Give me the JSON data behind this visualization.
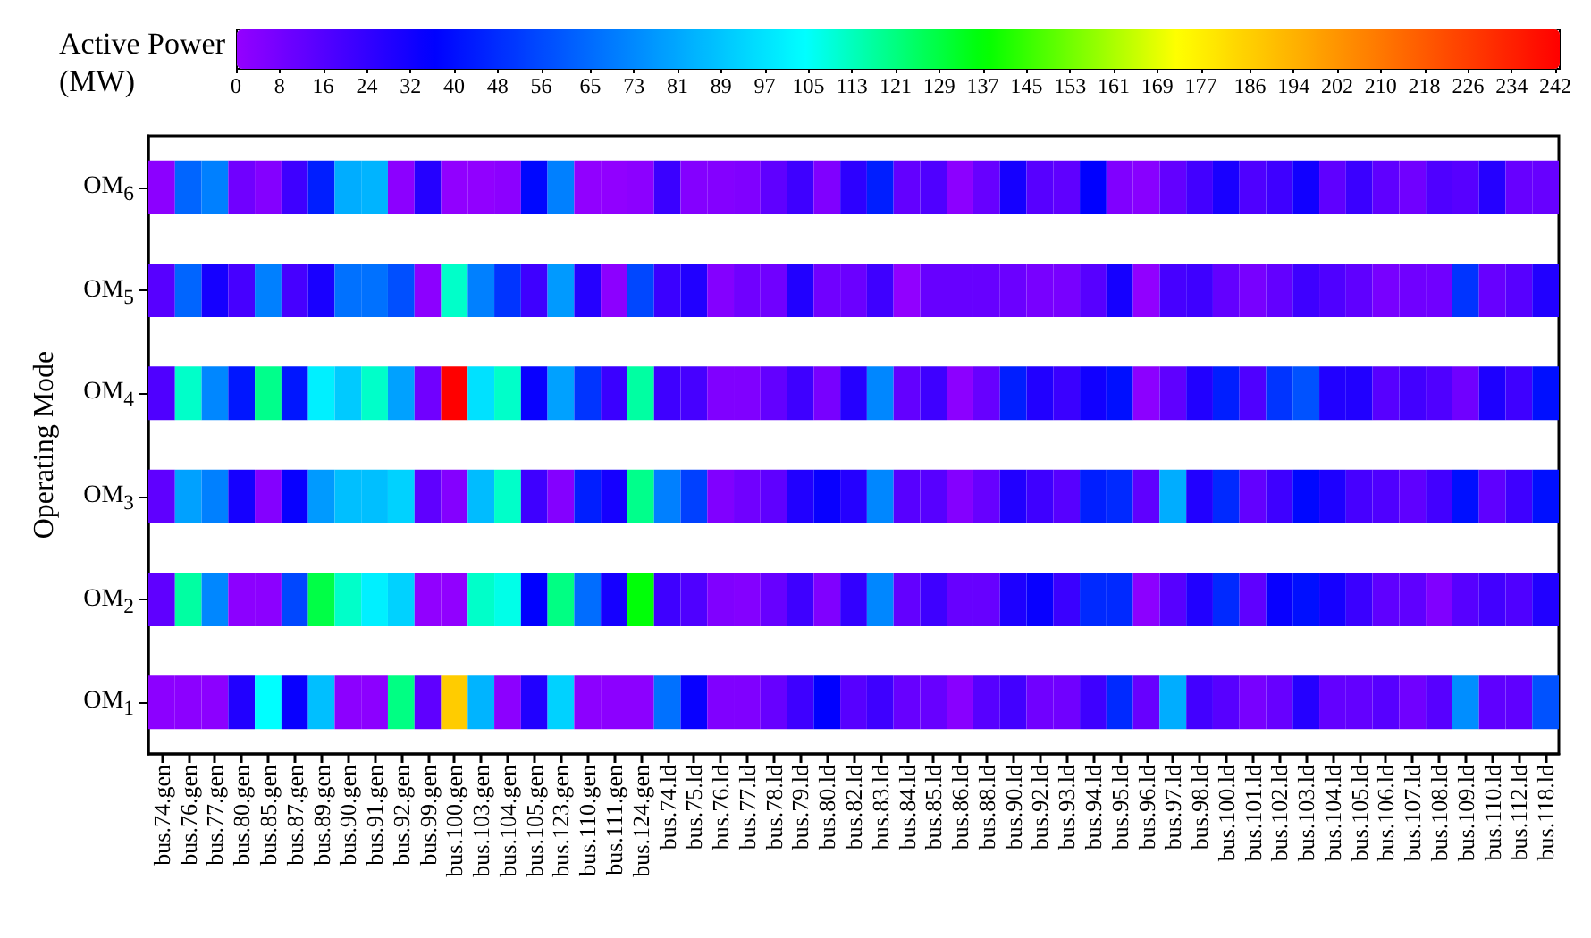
{
  "chart_data": {
    "type": "heatmap",
    "ylabel": "Operating Mode",
    "clabel": "Active Power\n(MW)",
    "categories": [
      "bus.74.gen",
      "bus.76.gen",
      "bus.77.gen",
      "bus.80.gen",
      "bus.85.gen",
      "bus.87.gen",
      "bus.89.gen",
      "bus.90.gen",
      "bus.91.gen",
      "bus.92.gen",
      "bus.99.gen",
      "bus.100.gen",
      "bus.103.gen",
      "bus.104.gen",
      "bus.105.gen",
      "bus.123.gen",
      "bus.110.gen",
      "bus.111.gen",
      "bus.124.gen",
      "bus.74.ld",
      "bus.75.ld",
      "bus.76.ld",
      "bus.77.ld",
      "bus.78.ld",
      "bus.79.ld",
      "bus.80.ld",
      "bus.82.ld",
      "bus.83.ld",
      "bus.84.ld",
      "bus.85.ld",
      "bus.86.ld",
      "bus.88.ld",
      "bus.90.ld",
      "bus.92.ld",
      "bus.93.ld",
      "bus.94.ld",
      "bus.95.ld",
      "bus.96.ld",
      "bus.97.ld",
      "bus.98.ld",
      "bus.100.ld",
      "bus.101.ld",
      "bus.102.ld",
      "bus.103.ld",
      "bus.104.ld",
      "bus.105.ld",
      "bus.106.ld",
      "bus.107.ld",
      "bus.108.ld",
      "bus.109.ld",
      "bus.110.ld",
      "bus.112.ld",
      "bus.118.ld"
    ],
    "y_categories": [
      "OM$_{6}$",
      "OM$_{5}$",
      "OM$_{4}$",
      "OM$_{3}$",
      "OM$_{2}$",
      "OM$_{1}$"
    ],
    "cells": [
      [
        2,
        63,
        70,
        9,
        4,
        21,
        44,
        82,
        84,
        2,
        27,
        1,
        1,
        2,
        38,
        70,
        1,
        1,
        2,
        22,
        4,
        4,
        5,
        13,
        21,
        5,
        25,
        44,
        12,
        17,
        2,
        11,
        31,
        15,
        13,
        36,
        5,
        3,
        12,
        20,
        30,
        17,
        21,
        32,
        13,
        22,
        13,
        9,
        17,
        15,
        27,
        11,
        11
      ],
      [
        15,
        63,
        31,
        19,
        70,
        19,
        30,
        66,
        66,
        57,
        2,
        111,
        70,
        50,
        21,
        77,
        27,
        2,
        55,
        22,
        28,
        4,
        9,
        9,
        28,
        9,
        10,
        21,
        1,
        11,
        11,
        11,
        10,
        7,
        7,
        15,
        31,
        1,
        19,
        21,
        12,
        7,
        12,
        21,
        17,
        13,
        7,
        9,
        9,
        50,
        11,
        15,
        28
      ],
      [
        17,
        111,
        72,
        42,
        119,
        42,
        100,
        90,
        111,
        79,
        9,
        242,
        96,
        111,
        34,
        79,
        50,
        22,
        116,
        21,
        19,
        5,
        5,
        12,
        21,
        7,
        27,
        72,
        12,
        21,
        2,
        11,
        44,
        28,
        22,
        32,
        40,
        2,
        13,
        28,
        44,
        17,
        50,
        58,
        28,
        28,
        15,
        20,
        17,
        9,
        29,
        21,
        40
      ],
      [
        13,
        79,
        70,
        31,
        4,
        34,
        77,
        87,
        87,
        92,
        13,
        4,
        86,
        111,
        21,
        4,
        44,
        31,
        119,
        70,
        53,
        5,
        9,
        13,
        28,
        34,
        27,
        72,
        15,
        15,
        4,
        11,
        28,
        21,
        15,
        44,
        47,
        13,
        82,
        28,
        47,
        12,
        21,
        38,
        29,
        19,
        17,
        13,
        20,
        40,
        13,
        21,
        40
      ],
      [
        13,
        116,
        72,
        2,
        2,
        55,
        128,
        111,
        100,
        92,
        1,
        1,
        111,
        107,
        36,
        120,
        65,
        31,
        136,
        21,
        17,
        5,
        4,
        11,
        21,
        5,
        24,
        72,
        12,
        21,
        11,
        11,
        29,
        34,
        22,
        47,
        47,
        2,
        15,
        28,
        47,
        13,
        34,
        40,
        31,
        22,
        13,
        13,
        5,
        15,
        20,
        17,
        28
      ],
      [
        2,
        2,
        2,
        28,
        104,
        34,
        87,
        2,
        2,
        120,
        13,
        186,
        84,
        2,
        28,
        92,
        2,
        2,
        2,
        66,
        34,
        5,
        5,
        11,
        21,
        36,
        15,
        21,
        11,
        11,
        3,
        15,
        20,
        9,
        9,
        21,
        47,
        11,
        82,
        20,
        15,
        7,
        11,
        27,
        12,
        12,
        15,
        9,
        15,
        74,
        13,
        13,
        58
      ]
    ],
    "clim": [
      0,
      242
    ],
    "cticks": [
      0,
      8,
      16,
      24,
      32,
      40,
      48,
      56,
      65,
      73,
      81,
      89,
      97,
      105,
      113,
      121,
      129,
      137,
      145,
      153,
      161,
      169,
      177,
      186,
      194,
      202,
      210,
      218,
      226,
      234,
      242
    ]
  }
}
